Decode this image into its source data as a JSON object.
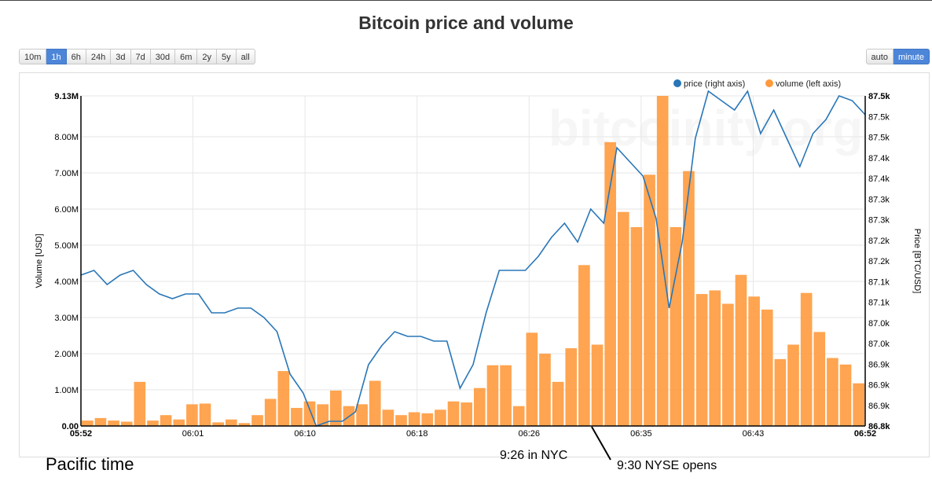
{
  "title": "Bitcoin price and volume",
  "range_buttons": [
    {
      "label": "10m",
      "active": false
    },
    {
      "label": "1h",
      "active": true
    },
    {
      "label": "6h",
      "active": false
    },
    {
      "label": "24h",
      "active": false
    },
    {
      "label": "3d",
      "active": false
    },
    {
      "label": "7d",
      "active": false
    },
    {
      "label": "30d",
      "active": false
    },
    {
      "label": "6m",
      "active": false
    },
    {
      "label": "2y",
      "active": false
    },
    {
      "label": "5y",
      "active": false
    },
    {
      "label": "all",
      "active": false
    }
  ],
  "interval_buttons": [
    {
      "label": "auto",
      "active": false
    },
    {
      "label": "minute",
      "active": true
    }
  ],
  "watermark": "bitcoinity.org",
  "annotations": {
    "pacific": "Pacific time",
    "nyc": "9:26 in NYC",
    "nyse": "9:30 NYSE opens"
  },
  "colors": {
    "price": "#2876b8",
    "volume": "#ff9a3d",
    "active_button": "#4d86d8"
  },
  "chart_data": {
    "type": "bar+line",
    "legend_position": "top-right",
    "grid": true,
    "legend": [
      {
        "name": "price (right axis)",
        "color": "#2876b8"
      },
      {
        "name": "volume (left axis)",
        "color": "#ff9a3d"
      }
    ],
    "x_axis": {
      "tick_labels": [
        "05:52",
        "06:01",
        "06:10",
        "06:18",
        "06:26",
        "06:35",
        "06:43",
        "06:52"
      ],
      "range_minutes": [
        0,
        60
      ]
    },
    "left_axis": {
      "label": "Volume [USD]",
      "range": [
        0,
        9.13
      ],
      "unit": "M",
      "tick_labels": [
        "0.00",
        "1.00M",
        "2.00M",
        "3.00M",
        "4.00M",
        "5.00M",
        "6.00M",
        "7.00M",
        "8.00M",
        "9.13M"
      ]
    },
    "right_axis": {
      "label": "Price [BTC/USD]",
      "range": [
        86.8,
        87.5
      ],
      "unit": "k",
      "tick_labels": [
        "86.8k",
        "86.9k",
        "86.9k",
        "86.9k",
        "87.0k",
        "87.0k",
        "87.1k",
        "87.1k",
        "87.2k",
        "87.2k",
        "87.3k",
        "87.3k",
        "87.4k",
        "87.4k",
        "87.5k",
        "87.5k",
        "87.5k"
      ]
    },
    "series": [
      {
        "name": "volume (left axis)",
        "axis": "left",
        "type": "bar",
        "unit": "M USD",
        "values": [
          0.15,
          0.22,
          0.15,
          0.12,
          1.22,
          0.15,
          0.3,
          0.18,
          0.6,
          0.62,
          0.1,
          0.18,
          0.08,
          0.3,
          0.75,
          1.52,
          0.5,
          0.68,
          0.6,
          0.98,
          0.55,
          0.6,
          1.25,
          0.45,
          0.3,
          0.38,
          0.35,
          0.45,
          0.68,
          0.65,
          1.05,
          1.68,
          1.68,
          0.55,
          2.58,
          2.0,
          1.22,
          2.15,
          4.45,
          2.25,
          7.85,
          5.92,
          5.5,
          6.95,
          9.13,
          5.5,
          7.05,
          3.65,
          3.75,
          3.38,
          4.18,
          3.58,
          3.22,
          1.85,
          2.25,
          3.68,
          2.6,
          1.88,
          1.7,
          1.18
        ]
      },
      {
        "name": "price (right axis)",
        "axis": "right",
        "type": "line",
        "unit": "k USD",
        "values": [
          87.12,
          87.13,
          87.1,
          87.12,
          87.13,
          87.1,
          87.08,
          87.07,
          87.08,
          87.08,
          87.04,
          87.04,
          87.05,
          87.05,
          87.03,
          87.0,
          86.91,
          86.87,
          86.8,
          86.81,
          86.81,
          86.83,
          86.93,
          86.97,
          87.0,
          86.99,
          86.99,
          86.98,
          86.98,
          86.88,
          86.93,
          87.04,
          87.13,
          87.13,
          87.13,
          87.16,
          87.2,
          87.23,
          87.19,
          87.26,
          87.23,
          87.39,
          87.36,
          87.33,
          87.24,
          87.05,
          87.19,
          87.41,
          87.51,
          87.49,
          87.47,
          87.51,
          87.42,
          87.47,
          87.41,
          87.35,
          87.42,
          87.45,
          87.5,
          87.49,
          87.46
        ]
      }
    ]
  }
}
